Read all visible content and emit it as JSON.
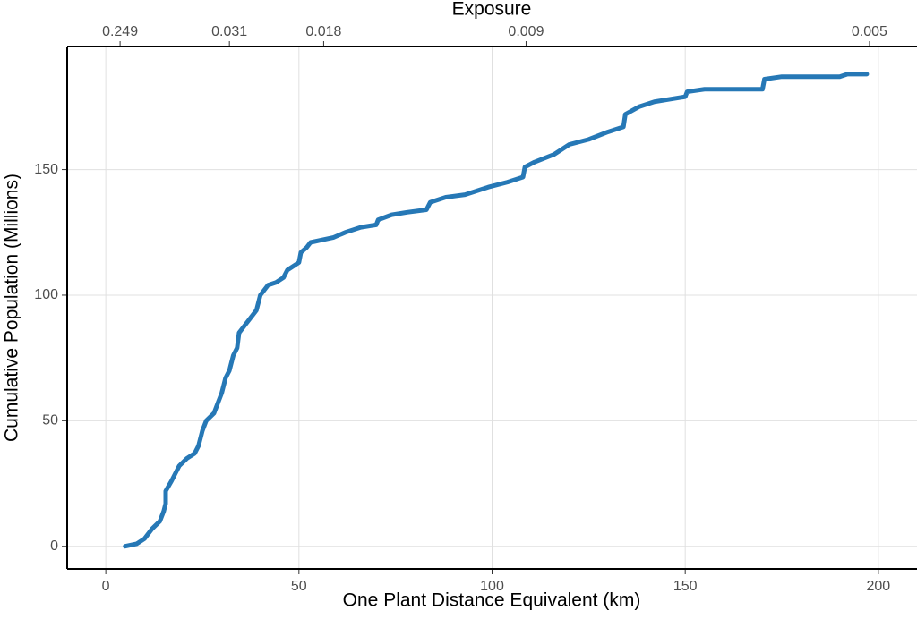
{
  "chart_data": {
    "type": "line",
    "xlabel": "One Plant Distance Equivalent (km)",
    "ylabel": "Cumulative Population (Millions)",
    "x2label": "Exposure",
    "x": [
      5,
      8,
      10,
      12,
      14,
      15,
      15.5,
      15.5,
      17,
      19,
      21,
      23,
      24,
      25,
      26,
      28,
      29,
      30,
      31,
      32,
      33,
      34,
      34.5,
      36,
      38,
      39,
      40,
      42,
      44,
      46,
      47,
      49,
      50,
      50.5,
      52,
      53,
      56,
      59,
      62,
      66,
      70,
      70.5,
      74,
      78,
      83,
      84,
      88,
      93,
      99,
      104,
      108,
      108.5,
      111,
      116,
      118,
      120,
      125,
      130,
      134,
      134.5,
      138,
      142,
      146,
      150,
      150.5,
      155,
      160,
      170,
      170.5,
      175,
      190,
      192,
      197
    ],
    "series": [
      {
        "name": "Cumulative population",
        "color": "#2678b6",
        "values": [
          0,
          1,
          3,
          7,
          10,
          14,
          17,
          22,
          26,
          32,
          35,
          37,
          40,
          46,
          50,
          53,
          57,
          61,
          67,
          70,
          76,
          79,
          85,
          88,
          92,
          94,
          100,
          104,
          105,
          107,
          110,
          112,
          113,
          117,
          119,
          121,
          122,
          123,
          125,
          127,
          128,
          130,
          132,
          133,
          134,
          137,
          139,
          140,
          143,
          145,
          147,
          151,
          153,
          156,
          158,
          160,
          162,
          165,
          167,
          172,
          175,
          177,
          178,
          179,
          181,
          182,
          182,
          182,
          186,
          187,
          187,
          188,
          188
        ]
      }
    ],
    "xlim": [
      -10,
      210
    ],
    "ylim": [
      -9,
      199
    ],
    "xticks": [
      0,
      50,
      100,
      150,
      200
    ],
    "yticks": [
      0,
      50,
      100,
      150
    ],
    "x2ticks": [
      {
        "value": 3.7,
        "label": "0.249"
      },
      {
        "value": 32,
        "label": "0.031"
      },
      {
        "value": 56.4,
        "label": "0.018"
      },
      {
        "value": 108.8,
        "label": "0.009"
      },
      {
        "value": 197.7,
        "label": "0.005"
      }
    ],
    "grid": true
  }
}
